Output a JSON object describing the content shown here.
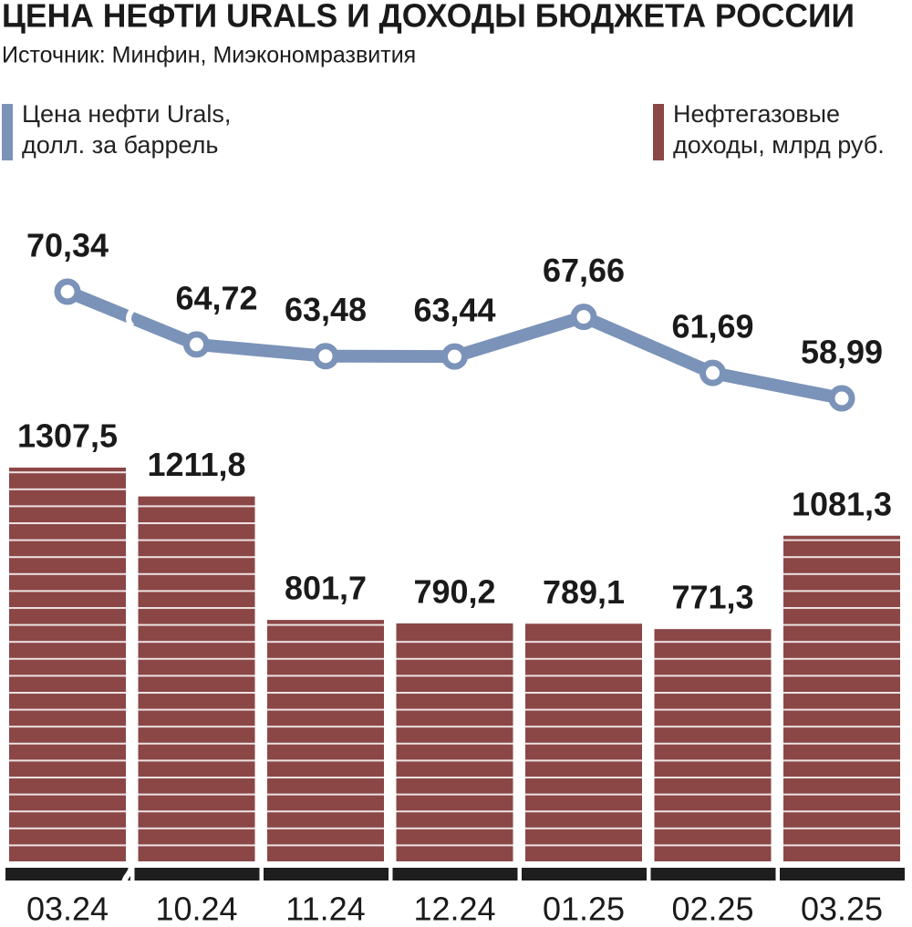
{
  "chart_data": {
    "type": "bar",
    "title": "ЦЕНА НЕФТИ URALS И ДОХОДЫ БЮДЖЕТА РОССИИ",
    "subtitle": "Источник: Минфин, Миэкономразвития",
    "categories": [
      "03.24",
      "10.24",
      "11.24",
      "12.24",
      "01.25",
      "02.25",
      "03.25"
    ],
    "series": [
      {
        "name": "Цена нефти Urals, долл. за баррель",
        "type": "line",
        "color": "#7b93b8",
        "values": [
          70.34,
          64.72,
          63.48,
          63.44,
          67.66,
          61.69,
          58.99
        ],
        "value_labels": [
          "70,34",
          "64,72",
          "63,48",
          "63,44",
          "67,66",
          "61,69",
          "58,99"
        ]
      },
      {
        "name": "Нефтегазовые доходы, млрд руб.",
        "type": "bar",
        "color": "#8b4646",
        "values": [
          1307.5,
          1211.8,
          801.7,
          790.2,
          789.1,
          771.3,
          1081.3
        ],
        "value_labels": [
          "1307,5",
          "1211,8",
          "801,7",
          "790,2",
          "789,1",
          "771,3",
          "1081,3"
        ]
      }
    ]
  }
}
